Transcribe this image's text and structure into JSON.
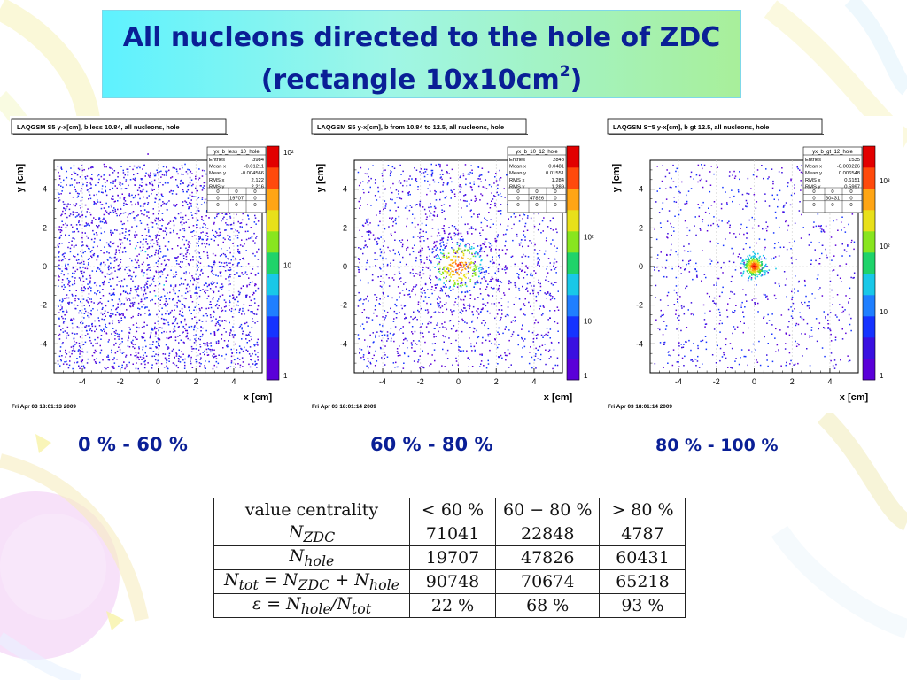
{
  "title": {
    "line1": "All nucleons directed to the hole of ZDC",
    "line2": "(rectangle 10x10cm",
    "line2_sup": "2",
    "line2_end": ")"
  },
  "colors": {
    "title_text": "#0a1f96",
    "title_bg_start": "#5ef2ff",
    "title_bg_end": "#a8ef9a",
    "marker": "#2200cc"
  },
  "centralities": [
    "0 % - 60 %",
    "60 % - 80 %",
    "80 % - 100 %"
  ],
  "chart_data": [
    {
      "type": "heatmap",
      "title": "LAQGSM S5  y-x[cm], b less 10.84, all nucleons,  hole",
      "xlabel": "x [cm]",
      "ylabel": "y [cm]",
      "xlim": [
        -5.5,
        5.5
      ],
      "ylim": [
        -5.5,
        5.5
      ],
      "xticks": [
        "-4",
        "-2",
        "0",
        "2",
        "4"
      ],
      "yticks": [
        "-4",
        "-2",
        "0",
        "2",
        "4"
      ],
      "grid": true,
      "legend_placement": "top-right",
      "color_scale": {
        "type": "log",
        "labels": [
          "1",
          "10",
          "10²"
        ]
      },
      "stats": {
        "name": "yx_b_less_10_hole",
        "rows": [
          [
            "Entries",
            "3984"
          ],
          [
            "Mean x",
            "-0.01211"
          ],
          [
            "Mean y",
            "-0.004566"
          ],
          [
            "RMS x",
            "2.122"
          ],
          [
            "RMS y",
            "2.216"
          ]
        ],
        "matrix": [
          [
            "0",
            "0",
            "0"
          ],
          [
            "0",
            "19707",
            "0"
          ],
          [
            "0",
            "0",
            "0"
          ]
        ]
      },
      "timestamp": "Fri Apr 03 18:01:13 2009"
    },
    {
      "type": "heatmap",
      "title": "LAQGSM S5  y-x[cm], b from 10.84 to 12.5, all nucleons,  hole",
      "xlabel": "x [cm]",
      "ylabel": "y [cm]",
      "xlim": [
        -5.5,
        5.5
      ],
      "ylim": [
        -5.5,
        5.5
      ],
      "xticks": [
        "-4",
        "-2",
        "0",
        "2",
        "4"
      ],
      "yticks": [
        "-4",
        "-2",
        "0",
        "2",
        "4"
      ],
      "grid": true,
      "legend_placement": "top-right",
      "color_scale": {
        "type": "log",
        "labels": [
          "1",
          "10",
          "10²"
        ]
      },
      "stats": {
        "name": "yx_b_10_12_hole",
        "rows": [
          [
            "Entries",
            "2848"
          ],
          [
            "Mean x",
            "0.0481"
          ],
          [
            "Mean y",
            "0.01551"
          ],
          [
            "RMS x",
            "1.284"
          ],
          [
            "RMS y",
            "1.289"
          ]
        ],
        "matrix": [
          [
            "0",
            "0",
            "0"
          ],
          [
            "0",
            "47826",
            "0"
          ],
          [
            "0",
            "0",
            "0"
          ]
        ]
      },
      "timestamp": "Fri Apr 03 18:01:14 2009"
    },
    {
      "type": "heatmap",
      "title": "LAQGSM S=5  y-x[cm], b gt 12.5, all nucleons,  hole",
      "xlabel": "x [cm]",
      "ylabel": "y [cm]",
      "xlim": [
        -5.5,
        5.5
      ],
      "ylim": [
        -5.5,
        5.5
      ],
      "xticks": [
        "-4",
        "-2",
        "0",
        "2",
        "4"
      ],
      "yticks": [
        "-4",
        "-2",
        "0",
        "2",
        "4"
      ],
      "grid": true,
      "legend_placement": "top-right",
      "color_scale": {
        "type": "log",
        "labels": [
          "1",
          "10",
          "10²",
          "10³"
        ]
      },
      "stats": {
        "name": "yx_b_gt_12_hole",
        "rows": [
          [
            "Entries",
            "1535"
          ],
          [
            "Mean x",
            "-0.009226"
          ],
          [
            "Mean y",
            "0.006548"
          ],
          [
            "RMS x",
            "0.6151"
          ],
          [
            "RMS y",
            "0.5997"
          ]
        ],
        "matrix": [
          [
            "0",
            "0",
            "0"
          ],
          [
            "0",
            "60431",
            "0"
          ],
          [
            "0",
            "0",
            "0"
          ]
        ]
      },
      "timestamp": "Fri Apr 03 18:01:14 2009"
    },
    {
      "type": "table",
      "header": [
        "value  centrality",
        "< 60 %",
        "60 − 80 %",
        "> 80 %"
      ],
      "rows": [
        {
          "label": "N",
          "sub": "ZDC",
          "values": [
            "71041",
            "22848",
            "4787"
          ]
        },
        {
          "label": "N",
          "sub": "hole",
          "values": [
            "19707",
            "47826",
            "60431"
          ]
        },
        {
          "label": "N",
          "sub": "tot",
          "eq": " = N",
          "sub2": "ZDC",
          "eq2": " + N",
          "sub3": "hole",
          "values": [
            "90748",
            "70674",
            "65218"
          ]
        },
        {
          "label": "ε = N",
          "sub": "hole",
          "eq": "/N",
          "sub2": "tot",
          "values": [
            "22 %",
            "68 %",
            "93 %"
          ]
        }
      ]
    }
  ]
}
